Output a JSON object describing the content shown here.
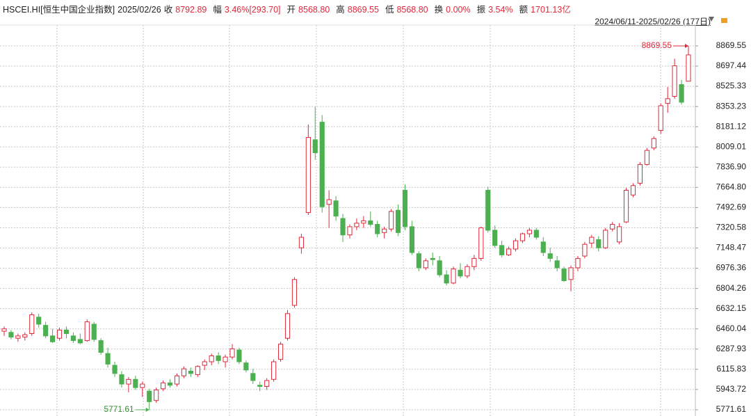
{
  "chart_data": {
    "type": "candlestick",
    "name": "HSCEI.HI[恒生中国企业指数]",
    "date": "2025/02/26",
    "info": [
      {
        "label": "收",
        "value": "8792.89"
      },
      {
        "label": "幅",
        "value": "3.46%[293.70]"
      },
      {
        "label": "开",
        "value": "8568.80"
      },
      {
        "label": "高",
        "value": "8869.55"
      },
      {
        "label": "低",
        "value": "8568.80"
      },
      {
        "label": "换",
        "value": "0.00%"
      },
      {
        "label": "振",
        "value": "3.54%"
      },
      {
        "label": "额",
        "value": "1701.13亿"
      }
    ],
    "range": "2024/06/11-2025/02/26 (177日)",
    "up_color": "#e0283a",
    "down_color": "#4caf50",
    "max_label": "8869.55",
    "min_label": "5771.61",
    "ylim": [
      5718,
      9047
    ],
    "yticks": [
      8869.55,
      8697.44,
      8525.33,
      8353.23,
      8181.12,
      8009.01,
      {
        "value": 7836.9,
        "label": "7836.90"
      },
      {
        "value": 7664.8,
        "label": "7664.80"
      },
      7492.69,
      7320.58,
      7148.47,
      6976.36,
      6804.26,
      6632.15,
      6460.04,
      6287.93,
      6115.83,
      5943.72,
      5771.61
    ],
    "grid": true,
    "open": [
      6440,
      6430,
      6380,
      6390,
      6420,
      6560,
      6490,
      6400,
      6380,
      6450,
      6400,
      6370,
      6360,
      6500,
      6360,
      6250,
      6150,
      6070,
      5990,
      6030,
      5960,
      5930,
      5850,
      5950,
      6000,
      5990,
      6060,
      6100,
      6070,
      6150,
      6180,
      6230,
      6180,
      6220,
      6280,
      6170,
      6080,
      5980,
      5970,
      6030,
      6200,
      6380,
      6660,
      7150,
      7450,
      8070,
      8220,
      7520,
      7550,
      7400,
      7260,
      7330,
      7360,
      7380,
      7350,
      7280,
      7310,
      7470,
      7640,
      7330,
      7100,
      6980,
      7060,
      7040,
      6920,
      6850,
      6960,
      6910,
      6990,
      7060,
      7640,
      7300,
      7170,
      7090,
      7140,
      7210,
      7270,
      7300,
      7200,
      7100,
      7040,
      6970,
      6880,
      6980,
      7080,
      7190,
      7220,
      7150,
      7310,
      7200,
      7370,
      7600,
      7700,
      7860,
      8000,
      8150,
      8380,
      8440,
      8540,
      8568.8
    ],
    "high": [
      6480,
      6450,
      6420,
      6430,
      6600,
      6590,
      6520,
      6460,
      6470,
      6480,
      6430,
      6420,
      6540,
      6520,
      6380,
      6300,
      6180,
      6100,
      6050,
      6060,
      6010,
      5950,
      5960,
      6020,
      6030,
      6080,
      6140,
      6130,
      6150,
      6200,
      6250,
      6260,
      6240,
      6330,
      6300,
      6190,
      6120,
      6010,
      6040,
      6200,
      6350,
      6620,
      6900,
      7270,
      8200,
      8350,
      8280,
      7640,
      7590,
      7440,
      7350,
      7400,
      7420,
      7460,
      7380,
      7330,
      7480,
      7520,
      7690,
      7380,
      7120,
      7060,
      7110,
      7080,
      6960,
      6990,
      7020,
      7010,
      7090,
      7330,
      7670,
      7340,
      7210,
      7160,
      7230,
      7280,
      7320,
      7320,
      7240,
      7150,
      7080,
      6990,
      7000,
      7080,
      7200,
      7260,
      7250,
      7320,
      7370,
      7360,
      7660,
      7700,
      7880,
      8000,
      8100,
      8380,
      8520,
      8760,
      8580,
      8869.55
    ],
    "low": [
      6400,
      6370,
      6350,
      6360,
      6400,
      6470,
      6380,
      6340,
      6360,
      6380,
      6340,
      6330,
      6350,
      6350,
      6240,
      6130,
      6050,
      5960,
      5920,
      5940,
      5880,
      5771.61,
      5830,
      5930,
      5960,
      5970,
      6040,
      6050,
      6050,
      6110,
      6150,
      6160,
      6130,
      6200,
      6160,
      6090,
      5990,
      5930,
      5940,
      6010,
      6180,
      6360,
      6640,
      7100,
      7430,
      7900,
      7450,
      7320,
      7380,
      7200,
      7230,
      7300,
      7320,
      7330,
      7240,
      7230,
      7290,
      7250,
      7300,
      7090,
      6950,
      6960,
      7000,
      6900,
      6830,
      6840,
      6890,
      6890,
      6960,
      7040,
      7280,
      7150,
      7070,
      7080,
      7120,
      7190,
      7240,
      7220,
      7080,
      7030,
      6950,
      6860,
      6780,
      6950,
      7060,
      7150,
      7120,
      7140,
      7290,
      7180,
      7360,
      7580,
      7680,
      7850,
      7980,
      8120,
      8300,
      8420,
      8370,
      8568.8
    ],
    "close": [
      6460,
      6390,
      6400,
      6410,
      6580,
      6500,
      6400,
      6350,
      6450,
      6420,
      6360,
      6340,
      6520,
      6370,
      6260,
      6160,
      6080,
      5990,
      6030,
      5960,
      5990,
      5840,
      5940,
      6000,
      5980,
      6060,
      6120,
      6080,
      6140,
      6180,
      6230,
      6190,
      6220,
      6290,
      6180,
      6110,
      6020,
      5970,
      6020,
      6180,
      6330,
      6590,
      6880,
      7240,
      8090,
      7960,
      7500,
      7560,
      7420,
      7260,
      7330,
      7360,
      7380,
      7350,
      7270,
      7310,
      7460,
      7280,
      7330,
      7110,
      6980,
      7040,
      7050,
      6920,
      6850,
      6970,
      6910,
      6990,
      7060,
      7320,
      7300,
      7170,
      7090,
      7140,
      7210,
      7270,
      7300,
      7240,
      7110,
      7060,
      6980,
      6870,
      6980,
      7060,
      7180,
      7240,
      7150,
      7300,
      7350,
      7330,
      7640,
      7680,
      7860,
      7980,
      8080,
      8360,
      8420,
      8700,
      8390,
      8792.89
    ]
  }
}
